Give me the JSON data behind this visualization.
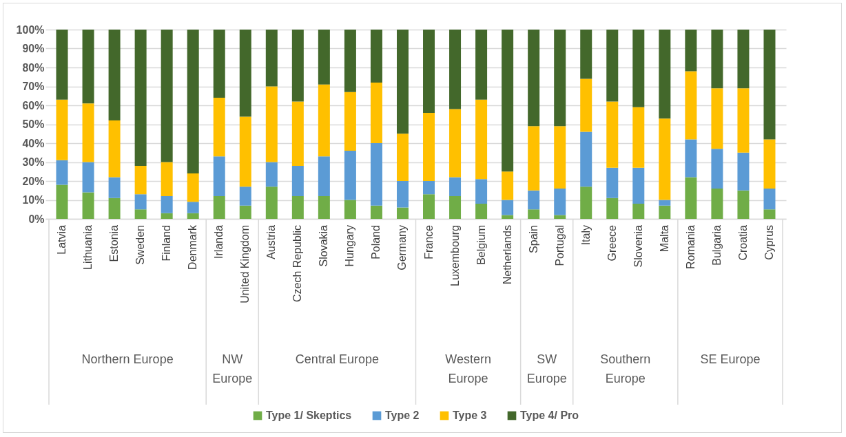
{
  "chart_data": {
    "type": "bar",
    "stacked": true,
    "categories": [
      "Latvia",
      "Lithuania",
      "Estonia",
      "Sweden",
      "Finland",
      "Denmark",
      "Irlanda",
      "United Kingdom",
      "Austria",
      "Czech Republic",
      "Slovakia",
      "Hungary",
      "Poland",
      "Germany",
      "France",
      "Luxembourg",
      "Belgium",
      "Netherlands",
      "Spain",
      "Portugal",
      "Italy",
      "Greece",
      "Slovenia",
      "Malta",
      "Romania",
      "Bulgaria",
      "Croatia",
      "Cyprus"
    ],
    "series": [
      {
        "name": "Type 1/ Skeptics",
        "color": "#70ad47",
        "values": [
          18,
          14,
          11,
          5,
          3,
          3,
          12,
          7,
          17,
          12,
          12,
          10,
          7,
          6,
          13,
          12,
          8,
          2,
          5,
          2,
          17,
          11,
          8,
          7,
          22,
          16,
          15,
          5
        ]
      },
      {
        "name": "Type 2",
        "color": "#5b9bd5",
        "values": [
          13,
          16,
          11,
          8,
          9,
          6,
          21,
          10,
          13,
          16,
          21,
          26,
          33,
          14,
          7,
          10,
          13,
          8,
          10,
          14,
          29,
          16,
          19,
          3,
          20,
          21,
          20,
          11
        ]
      },
      {
        "name": "Type 3",
        "color": "#ffc000",
        "values": [
          32,
          31,
          30,
          15,
          18,
          15,
          31,
          37,
          40,
          34,
          38,
          31,
          32,
          25,
          36,
          36,
          42,
          15,
          34,
          33,
          28,
          35,
          32,
          43,
          36,
          32,
          34,
          26
        ]
      },
      {
        "name": "Type 4/ Pro",
        "color": "#43682b",
        "values": [
          37,
          39,
          48,
          72,
          70,
          76,
          36,
          46,
          30,
          38,
          29,
          33,
          28,
          55,
          44,
          42,
          37,
          75,
          51,
          51,
          26,
          38,
          41,
          47,
          22,
          31,
          31,
          58
        ]
      }
    ],
    "ylim": [
      0,
      100
    ],
    "yticks": [
      {
        "value": 0,
        "label": "0%"
      },
      {
        "value": 10,
        "label": "10%"
      },
      {
        "value": 20,
        "label": "20%"
      },
      {
        "value": 30,
        "label": "30%"
      },
      {
        "value": 40,
        "label": "40%"
      },
      {
        "value": 50,
        "label": "50%"
      },
      {
        "value": 60,
        "label": "60%"
      },
      {
        "value": 70,
        "label": "70%"
      },
      {
        "value": 80,
        "label": "80%"
      },
      {
        "value": 90,
        "label": "90%"
      },
      {
        "value": 100,
        "label": "100%"
      }
    ],
    "grid": true,
    "legend": "bottom",
    "annotations": [
      "Northern Europe",
      "NW Europe",
      "Central Europe",
      "Western Europe",
      "SW Europe",
      "Southern Europe",
      "SE Europe"
    ]
  }
}
